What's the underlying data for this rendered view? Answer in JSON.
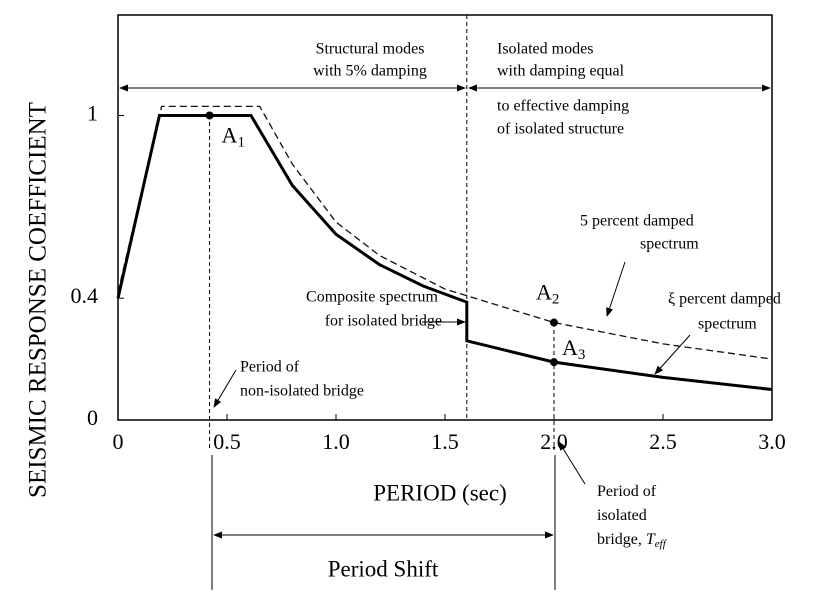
{
  "chart_data": {
    "type": "line",
    "xlabel": "PERIOD (sec)",
    "ylabel": "SEISMIC RESPONSE COEFFICIENT",
    "xlim": [
      0,
      3
    ],
    "ylim": [
      0,
      1.33
    ],
    "xticks": [
      0,
      0.5,
      {
        "value": 1,
        "label": "1.0"
      },
      1.5,
      {
        "value": 2,
        "label": "2.0"
      },
      2.5,
      {
        "value": 3,
        "label": "3.0"
      }
    ],
    "yticks": [
      0,
      0.4,
      1
    ],
    "series": [
      {
        "name": "5 percent damped spectrum",
        "color": "#111111",
        "dash": true,
        "x": [
          0,
          0.2,
          0.65,
          0.8,
          1.0,
          1.2,
          1.5,
          2.0,
          2.5,
          3.0
        ],
        "values": [
          0.42,
          1.03,
          1.03,
          0.84,
          0.65,
          0.54,
          0.43,
          0.32,
          0.25,
          0.2
        ]
      },
      {
        "name": "Composite spectrum for isolated bridge",
        "color": "#000000",
        "dash": false,
        "x": [
          0,
          0.19,
          0.61,
          0.8,
          1.0,
          1.2,
          1.4,
          1.6,
          1.6,
          2.0,
          2.5,
          3.0
        ],
        "values": [
          0.4,
          1.0,
          1.0,
          0.77,
          0.61,
          0.51,
          0.44,
          0.387,
          0.26,
          0.19,
          0.14,
          0.1
        ]
      }
    ],
    "vlines": [
      0.42,
      1.6,
      2.0
    ],
    "points": [
      {
        "label": "A",
        "subscript": "1",
        "x": 0.42,
        "y": 1.0
      },
      {
        "label": "A",
        "subscript": "2",
        "x": 2.0,
        "y": 0.32
      },
      {
        "label": "A",
        "subscript": "3",
        "x": 2.0,
        "y": 0.19
      }
    ],
    "annotations": {
      "structural": [
        "Structural modes",
        "with 5% damping"
      ],
      "isolated": [
        "Isolated modes",
        "with damping equal",
        "to effective damping",
        "of isolated structure"
      ],
      "five_percent": [
        "5 percent damped",
        "spectrum"
      ],
      "xi_percent": [
        "ξ percent damped",
        "spectrum"
      ],
      "composite": [
        "Composite spectrum",
        "for isolated bridge"
      ],
      "non_isolated": [
        "Period of",
        "non-isolated bridge"
      ],
      "isolated_period": {
        "lines": [
          "Period of",
          "isolated",
          "bridge,"
        ],
        "symbol": "T",
        "symbol_subscript": "eff"
      },
      "period_shift": "Period Shift"
    }
  }
}
